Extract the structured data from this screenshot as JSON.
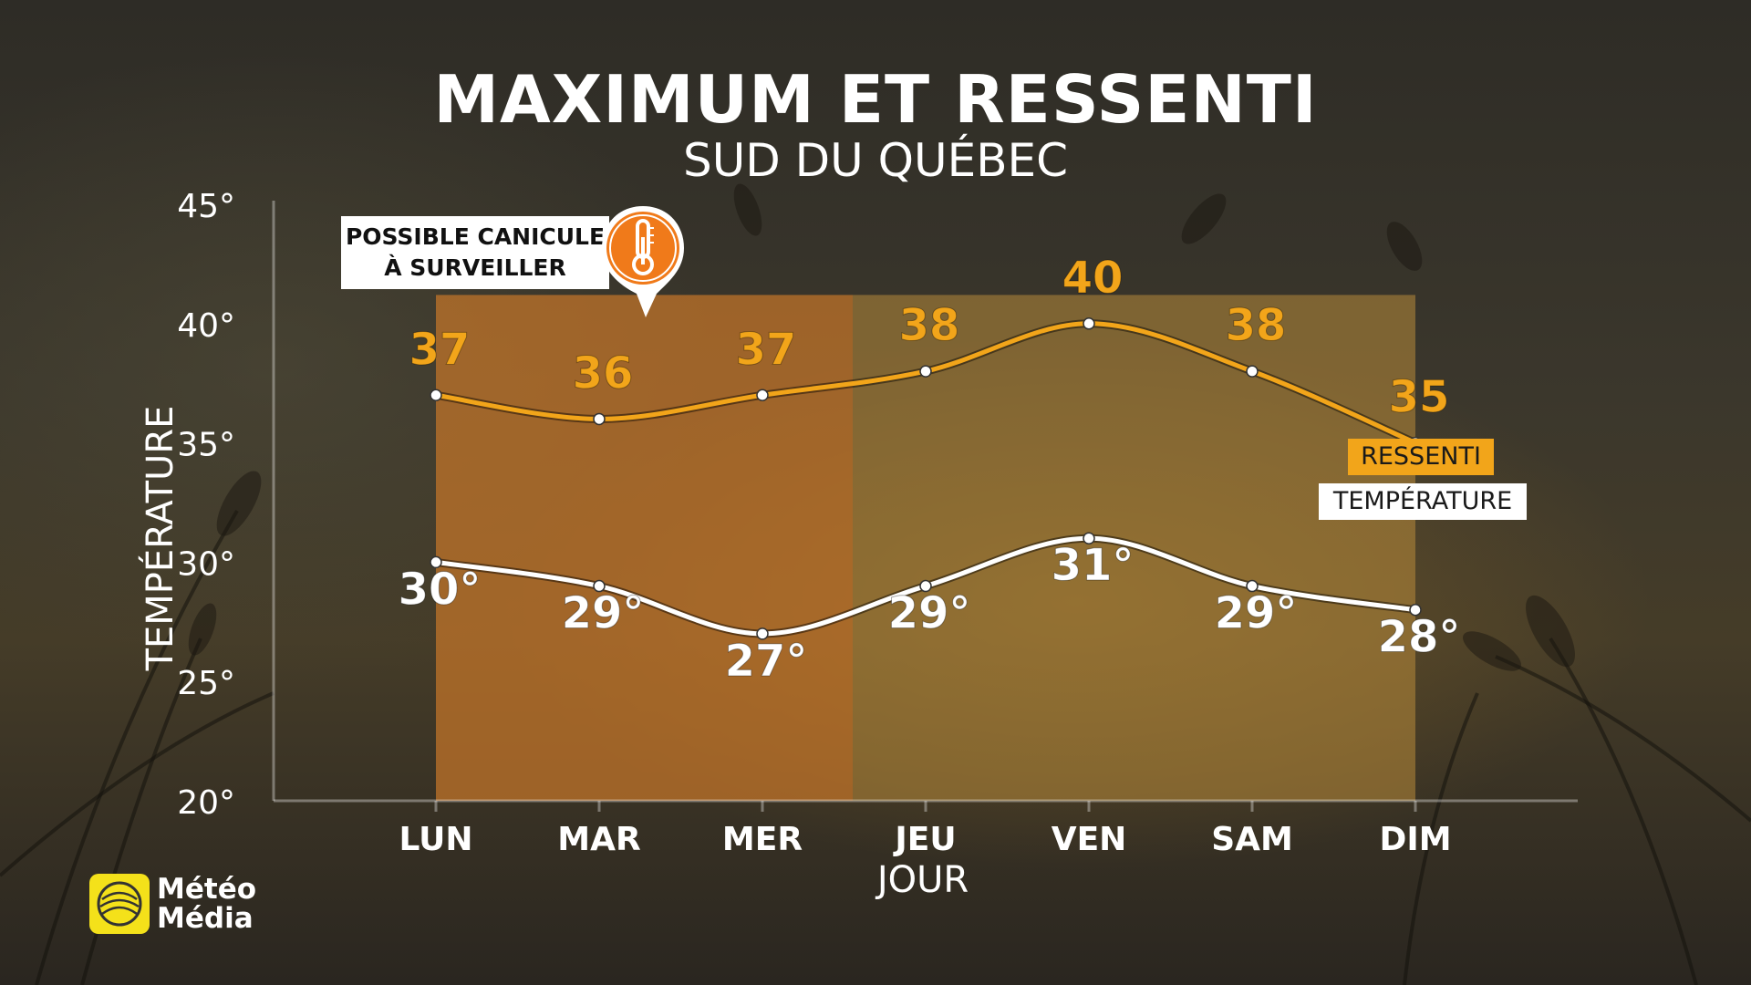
{
  "title": "MAXIMUM ET RESSENTI",
  "subtitle": "SUD DU QUÉBEC",
  "callout": {
    "line1": "POSSIBLE CANICULE",
    "line2": "À SURVEILLER",
    "icon": "thermometer-icon"
  },
  "legend": {
    "ressenti": "RESSENTI",
    "temperature": "TEMPÉRATURE"
  },
  "logo": {
    "line1": "Météo",
    "line2": "Média"
  },
  "colors": {
    "ressenti": "#f2a51a",
    "temperature": "#ffffff",
    "highlight": "#c9772a",
    "highlight_light": "#b88a3a",
    "icon": "#f07a1a"
  },
  "chart_data": {
    "type": "line",
    "categories": [
      "LUN",
      "MAR",
      "MER",
      "JEU",
      "VEN",
      "SAM",
      "DIM"
    ],
    "xlabel": "JOUR",
    "ylabel": "TEMPÉRATURE",
    "ylim": [
      20,
      45
    ],
    "yticks": [
      20,
      25,
      30,
      35,
      40,
      45
    ],
    "ytick_labels": [
      "20°",
      "25°",
      "30°",
      "35°",
      "40°",
      "45°"
    ],
    "series": [
      {
        "name": "RESSENTI",
        "values": [
          37,
          36,
          37,
          38,
          40,
          38,
          35
        ],
        "labels": [
          "37",
          "36",
          "37",
          "38",
          "40",
          "38",
          "35"
        ]
      },
      {
        "name": "TEMPÉRATURE",
        "values": [
          30,
          29,
          27,
          29,
          31,
          29,
          28
        ],
        "labels": [
          "30°",
          "29°",
          "27°",
          "29°",
          "31°",
          "29°",
          "28°"
        ]
      }
    ],
    "highlight_range": [
      "LUN",
      "MER"
    ],
    "grid": false,
    "legend_position": "right"
  }
}
